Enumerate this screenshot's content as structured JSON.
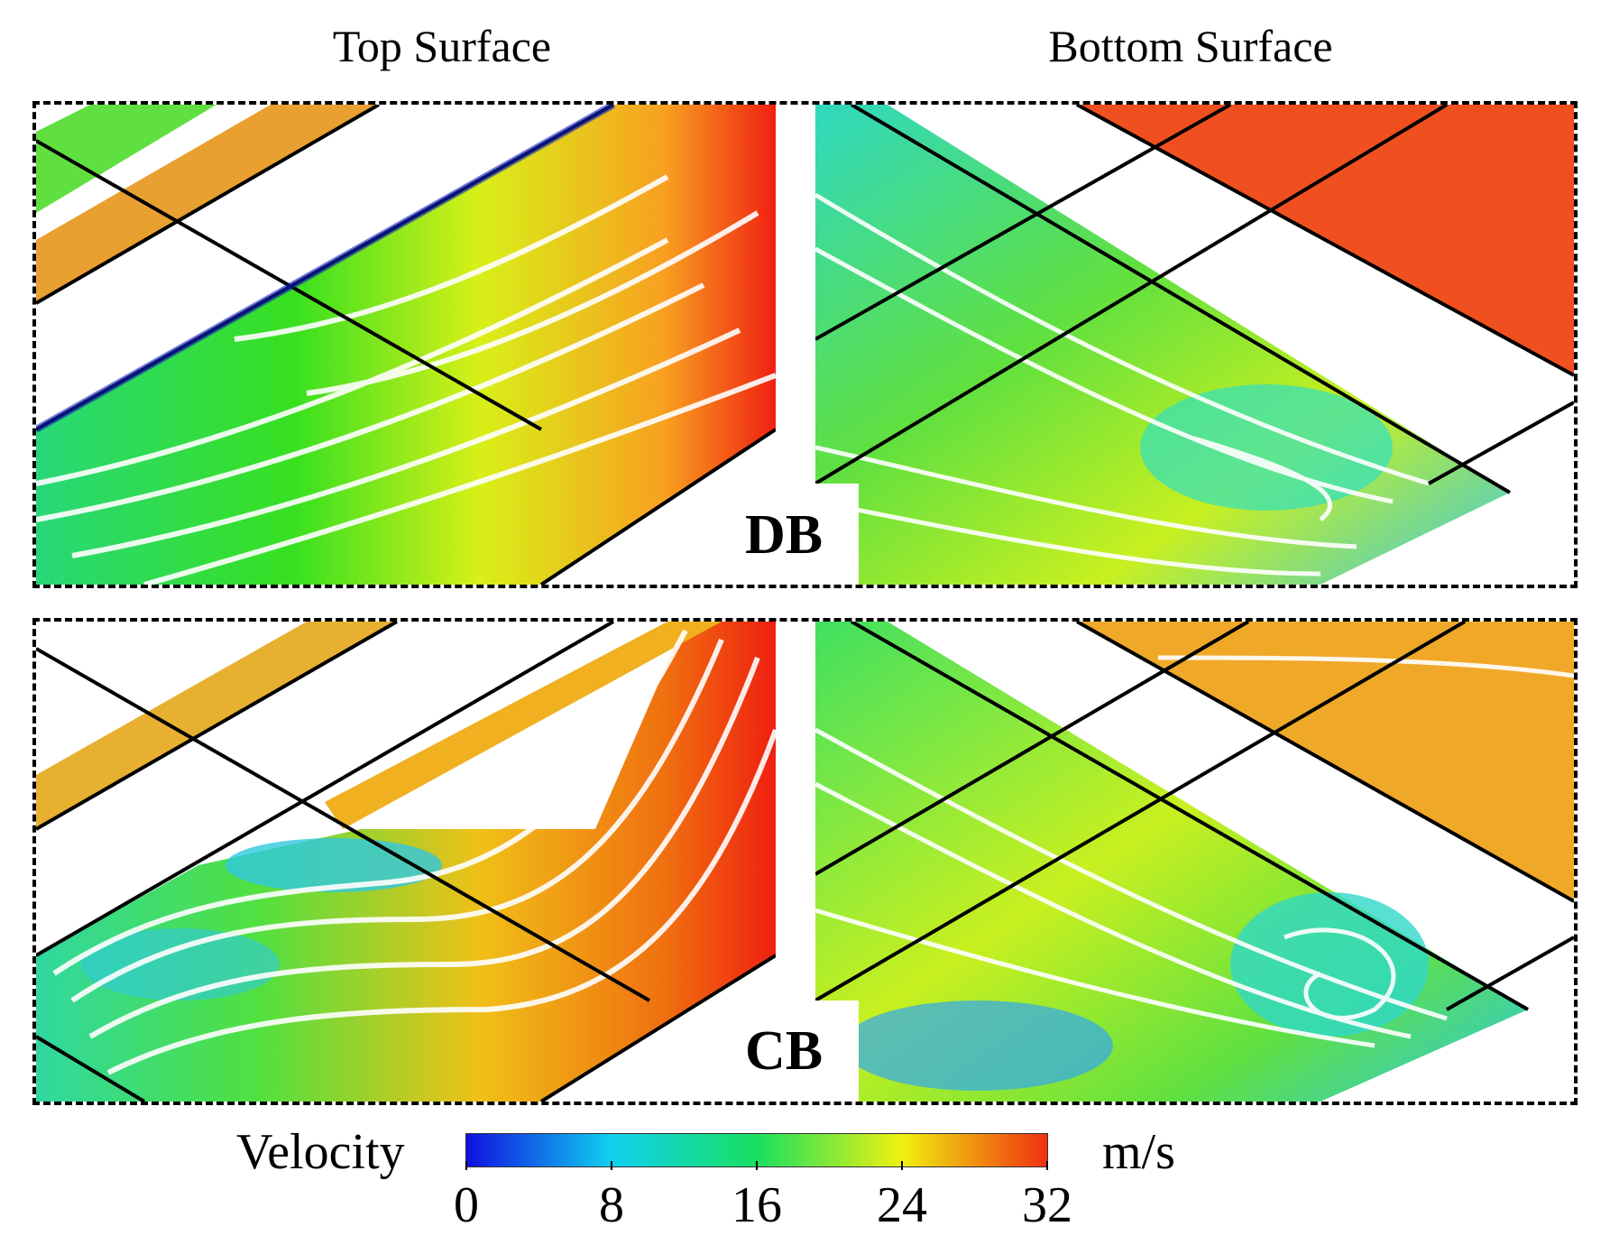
{
  "columns": {
    "top_title": "Top Surface",
    "bottom_title": "Bottom Surface"
  },
  "rows": [
    {
      "case": "DB"
    },
    {
      "case": "CB"
    }
  ],
  "colorbar": {
    "title": "Velocity",
    "units": "m/s",
    "ticks": [
      "0",
      "8",
      "16",
      "24",
      "32"
    ],
    "min": 0,
    "max": 32,
    "colors": [
      "#1010e0",
      "#10d0f0",
      "#18e060",
      "#f0f010",
      "#f03010"
    ]
  }
}
